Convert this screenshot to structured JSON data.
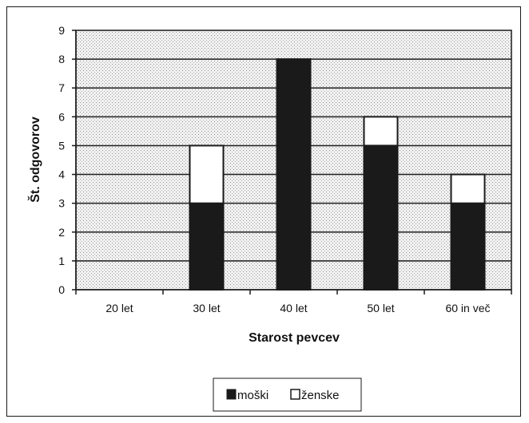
{
  "chart_data": {
    "type": "bar",
    "stacked": true,
    "categories": [
      "20 let",
      "30 let",
      "40 let",
      "50 let",
      "60 in več"
    ],
    "series": [
      {
        "name": "moški",
        "values": [
          0,
          3,
          8,
          5,
          3
        ],
        "color": "#1a1a1a"
      },
      {
        "name": "ženske",
        "values": [
          0,
          2,
          0,
          1,
          1
        ],
        "color": "#ffffff"
      }
    ],
    "xlabel": "Starost pevcev",
    "ylabel": "Št. odgovorov",
    "ylim": [
      0,
      9
    ],
    "yticks": [
      0,
      1,
      2,
      3,
      4,
      5,
      6,
      7,
      8,
      9
    ],
    "grid": true,
    "legend": "bottom",
    "plot_background": "dotted gray"
  }
}
